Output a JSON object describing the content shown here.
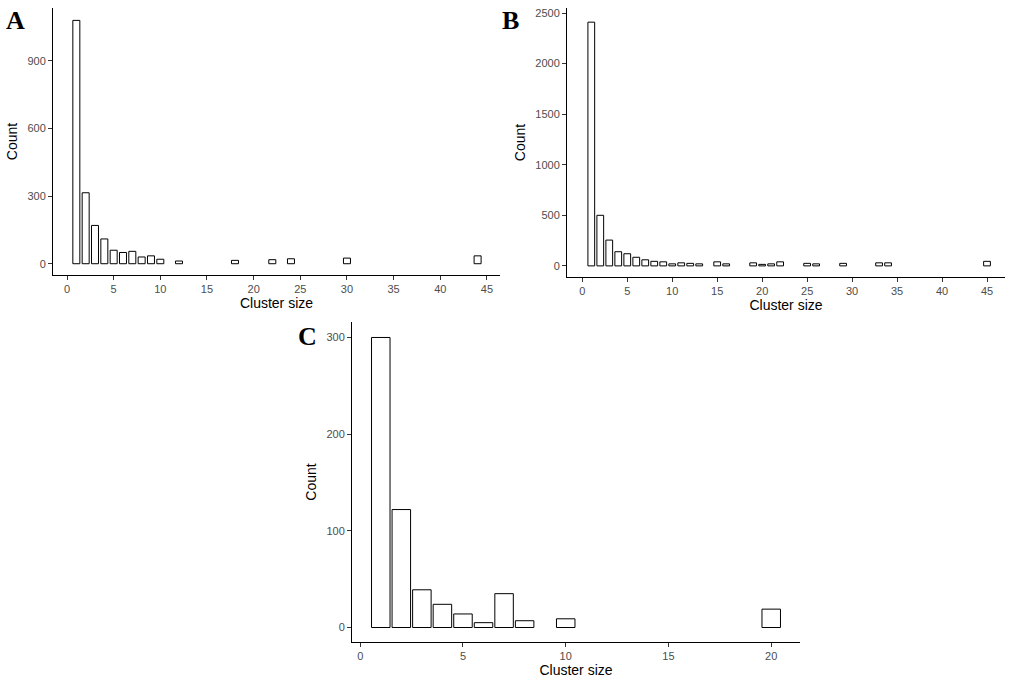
{
  "chart_data": [
    {
      "type": "bar",
      "title": "A",
      "x_label": "Cluster size",
      "y_label": "Count",
      "x": [
        1,
        2,
        3,
        4,
        5,
        6,
        7,
        8,
        9,
        10,
        12,
        18,
        22,
        24,
        30,
        44
      ],
      "values": [
        1080,
        315,
        170,
        110,
        60,
        50,
        55,
        30,
        35,
        20,
        12,
        15,
        18,
        22,
        25,
        35
      ],
      "color": "#ffffff",
      "xlim": [
        -1.5,
        46.4
      ],
      "xticks": [
        0,
        5,
        10,
        15,
        20,
        25,
        30,
        35,
        40,
        45
      ],
      "ylim": [
        -50,
        1135
      ],
      "yticks": [
        0,
        300,
        600,
        900
      ],
      "grid": false
    },
    {
      "type": "bar",
      "title": "B",
      "x_label": "Cluster size",
      "y_label": "Count",
      "x": [
        1,
        2,
        3,
        4,
        5,
        6,
        7,
        8,
        9,
        10,
        11,
        12,
        13,
        15,
        16,
        19,
        20,
        21,
        22,
        25,
        26,
        29,
        33,
        34,
        45
      ],
      "values": [
        2410,
        500,
        255,
        140,
        120,
        85,
        60,
        45,
        40,
        20,
        30,
        25,
        20,
        40,
        20,
        30,
        15,
        20,
        40,
        25,
        20,
        25,
        30,
        30,
        45
      ],
      "color": "#ffffff",
      "xlim": [
        -1.7,
        47
      ],
      "xticks": [
        0,
        5,
        10,
        15,
        20,
        25,
        30,
        35,
        40,
        45
      ],
      "ylim": [
        -110,
        2550
      ],
      "yticks": [
        0,
        500,
        1000,
        1500,
        2000,
        2500
      ],
      "grid": false
    },
    {
      "type": "bar",
      "title": "C",
      "x_label": "Cluster size",
      "y_label": "Count",
      "x": [
        1,
        2,
        3,
        4,
        5,
        6,
        7,
        8,
        10,
        20
      ],
      "values": [
        300,
        122,
        39,
        24,
        14,
        5,
        35,
        7,
        9,
        19
      ],
      "color": "#ffffff",
      "xlim": [
        -0.4,
        21.4
      ],
      "xticks": [
        0,
        5,
        10,
        15,
        20
      ],
      "ylim": [
        -15,
        316
      ],
      "yticks": [
        0,
        100,
        200,
        300
      ],
      "grid": false
    }
  ]
}
